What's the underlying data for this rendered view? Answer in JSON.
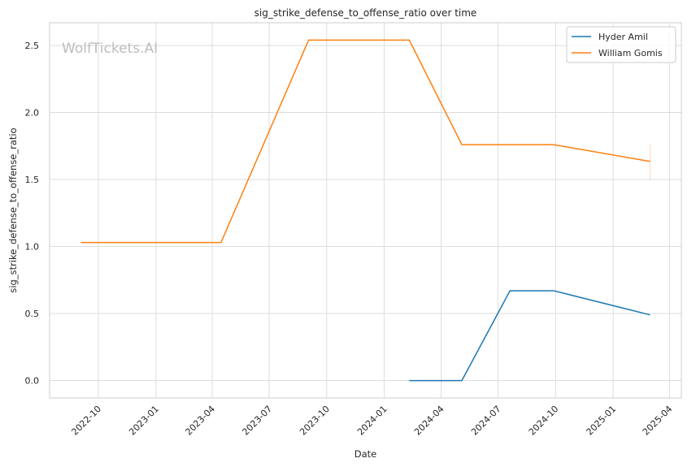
{
  "chart_data": {
    "type": "line",
    "title": "sig_strike_defense_to_offense_ratio over time",
    "xlabel": "Date",
    "ylabel": "sig_strike_defense_to_offense_ratio",
    "watermark": "WolfTickets.AI",
    "xlim": [
      "2022-07-15",
      "2025-04-20"
    ],
    "ylim": [
      -0.13,
      2.67
    ],
    "x_ticks": [
      "2022-10-01",
      "2023-01-01",
      "2023-04-01",
      "2023-07-01",
      "2023-10-01",
      "2024-01-01",
      "2024-04-01",
      "2024-07-01",
      "2024-10-01",
      "2025-01-01",
      "2025-04-01"
    ],
    "x_tick_labels": [
      "2022-10",
      "2023-01",
      "2023-04",
      "2023-07",
      "2023-10",
      "2024-01",
      "2024-04",
      "2024-07",
      "2024-10",
      "2025-01",
      "2025-04"
    ],
    "y_ticks": [
      0.0,
      0.5,
      1.0,
      1.5,
      2.0,
      2.5
    ],
    "y_tick_labels": [
      "0.0",
      "0.5",
      "1.0",
      "1.5",
      "2.0",
      "2.5"
    ],
    "grid": true,
    "legend_position": "top-right",
    "series": [
      {
        "name": "Hyder Amil",
        "color": "#1f77b4",
        "x": [
          "2024-02-10",
          "2024-05-04",
          "2024-07-20",
          "2024-09-28",
          "2025-03-01"
        ],
        "y": [
          0.0,
          0.0,
          0.67,
          0.67,
          0.49
        ]
      },
      {
        "name": "William Gomis",
        "color": "#ff7f0e",
        "x": [
          "2022-09-03",
          "2023-04-15",
          "2023-09-02",
          "2024-02-10",
          "2024-05-04",
          "2024-09-28",
          "2025-03-01"
        ],
        "y": [
          1.03,
          1.03,
          2.54,
          2.54,
          1.76,
          1.76,
          1.635
        ]
      }
    ],
    "error_bar": {
      "x": "2025-03-01",
      "y_low": 1.5,
      "y_high": 1.76,
      "color": "#ff7f0e"
    }
  }
}
